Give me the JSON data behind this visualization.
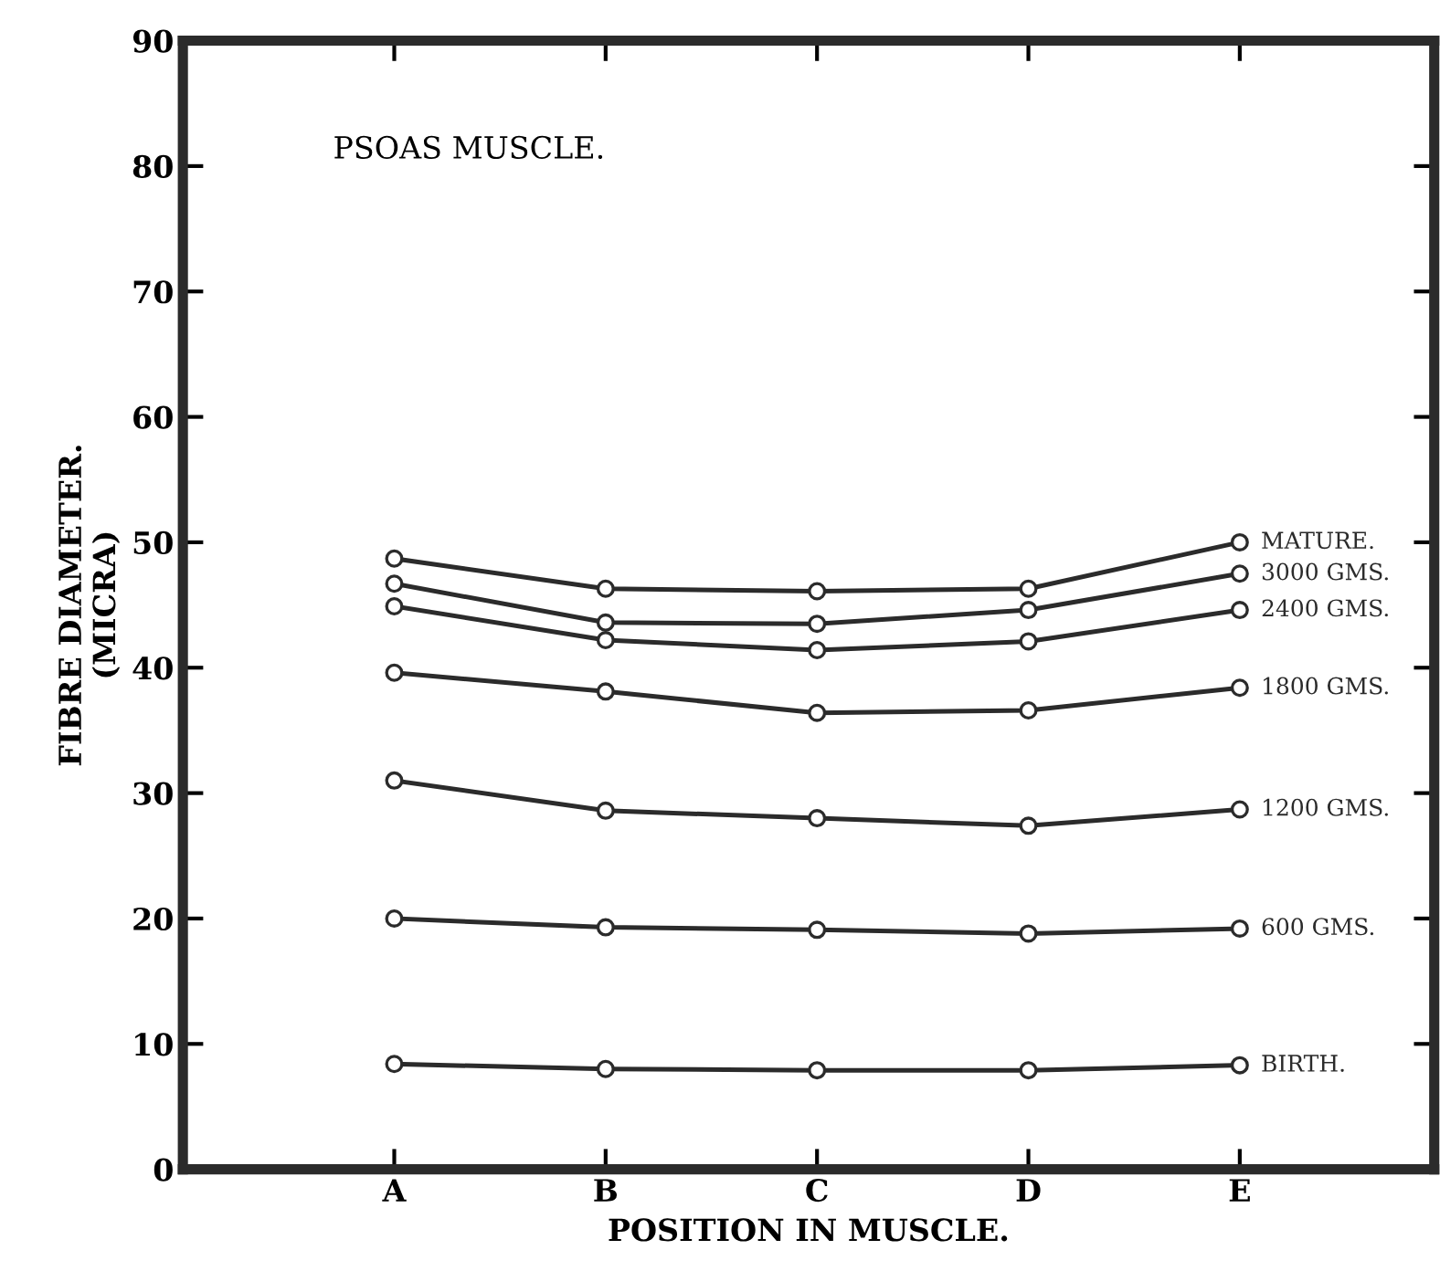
{
  "chart_data": {
    "type": "line",
    "title": "PSOAS MUSCLE.",
    "xlabel": "POSITION IN MUSCLE.",
    "ylabel": "FIBRE DIAMETER.\n(MICRA)",
    "categories": [
      "A",
      "B",
      "C",
      "D",
      "E"
    ],
    "series": [
      {
        "name": "MATURE.",
        "color": "#2b2b2b",
        "values": [
          48.7,
          46.3,
          46.1,
          46.3,
          50.0
        ]
      },
      {
        "name": "3000 GMS.",
        "color": "#2b2b2b",
        "values": [
          46.7,
          43.6,
          43.5,
          44.6,
          47.5
        ]
      },
      {
        "name": "2400 GMS.",
        "color": "#2b2b2b",
        "values": [
          44.9,
          42.2,
          41.4,
          42.1,
          44.6
        ]
      },
      {
        "name": "1800 GMS.",
        "color": "#2b2b2b",
        "values": [
          39.6,
          38.1,
          36.4,
          36.6,
          38.4
        ]
      },
      {
        "name": "1200 GMS.",
        "color": "#2b2b2b",
        "values": [
          31.0,
          28.6,
          28.0,
          27.4,
          28.7
        ]
      },
      {
        "name": "600 GMS.",
        "color": "#2b2b2b",
        "values": [
          20.0,
          19.3,
          19.1,
          18.8,
          19.2
        ]
      },
      {
        "name": "BIRTH.",
        "color": "#2b2b2b",
        "values": [
          8.4,
          8.0,
          7.9,
          7.9,
          8.3
        ]
      }
    ],
    "ylim": [
      0,
      90
    ],
    "yticks": [
      0,
      10,
      20,
      30,
      40,
      50,
      60,
      70,
      80,
      90
    ],
    "marker": "circle",
    "line_style": "solid",
    "grid": false,
    "legend": false
  }
}
